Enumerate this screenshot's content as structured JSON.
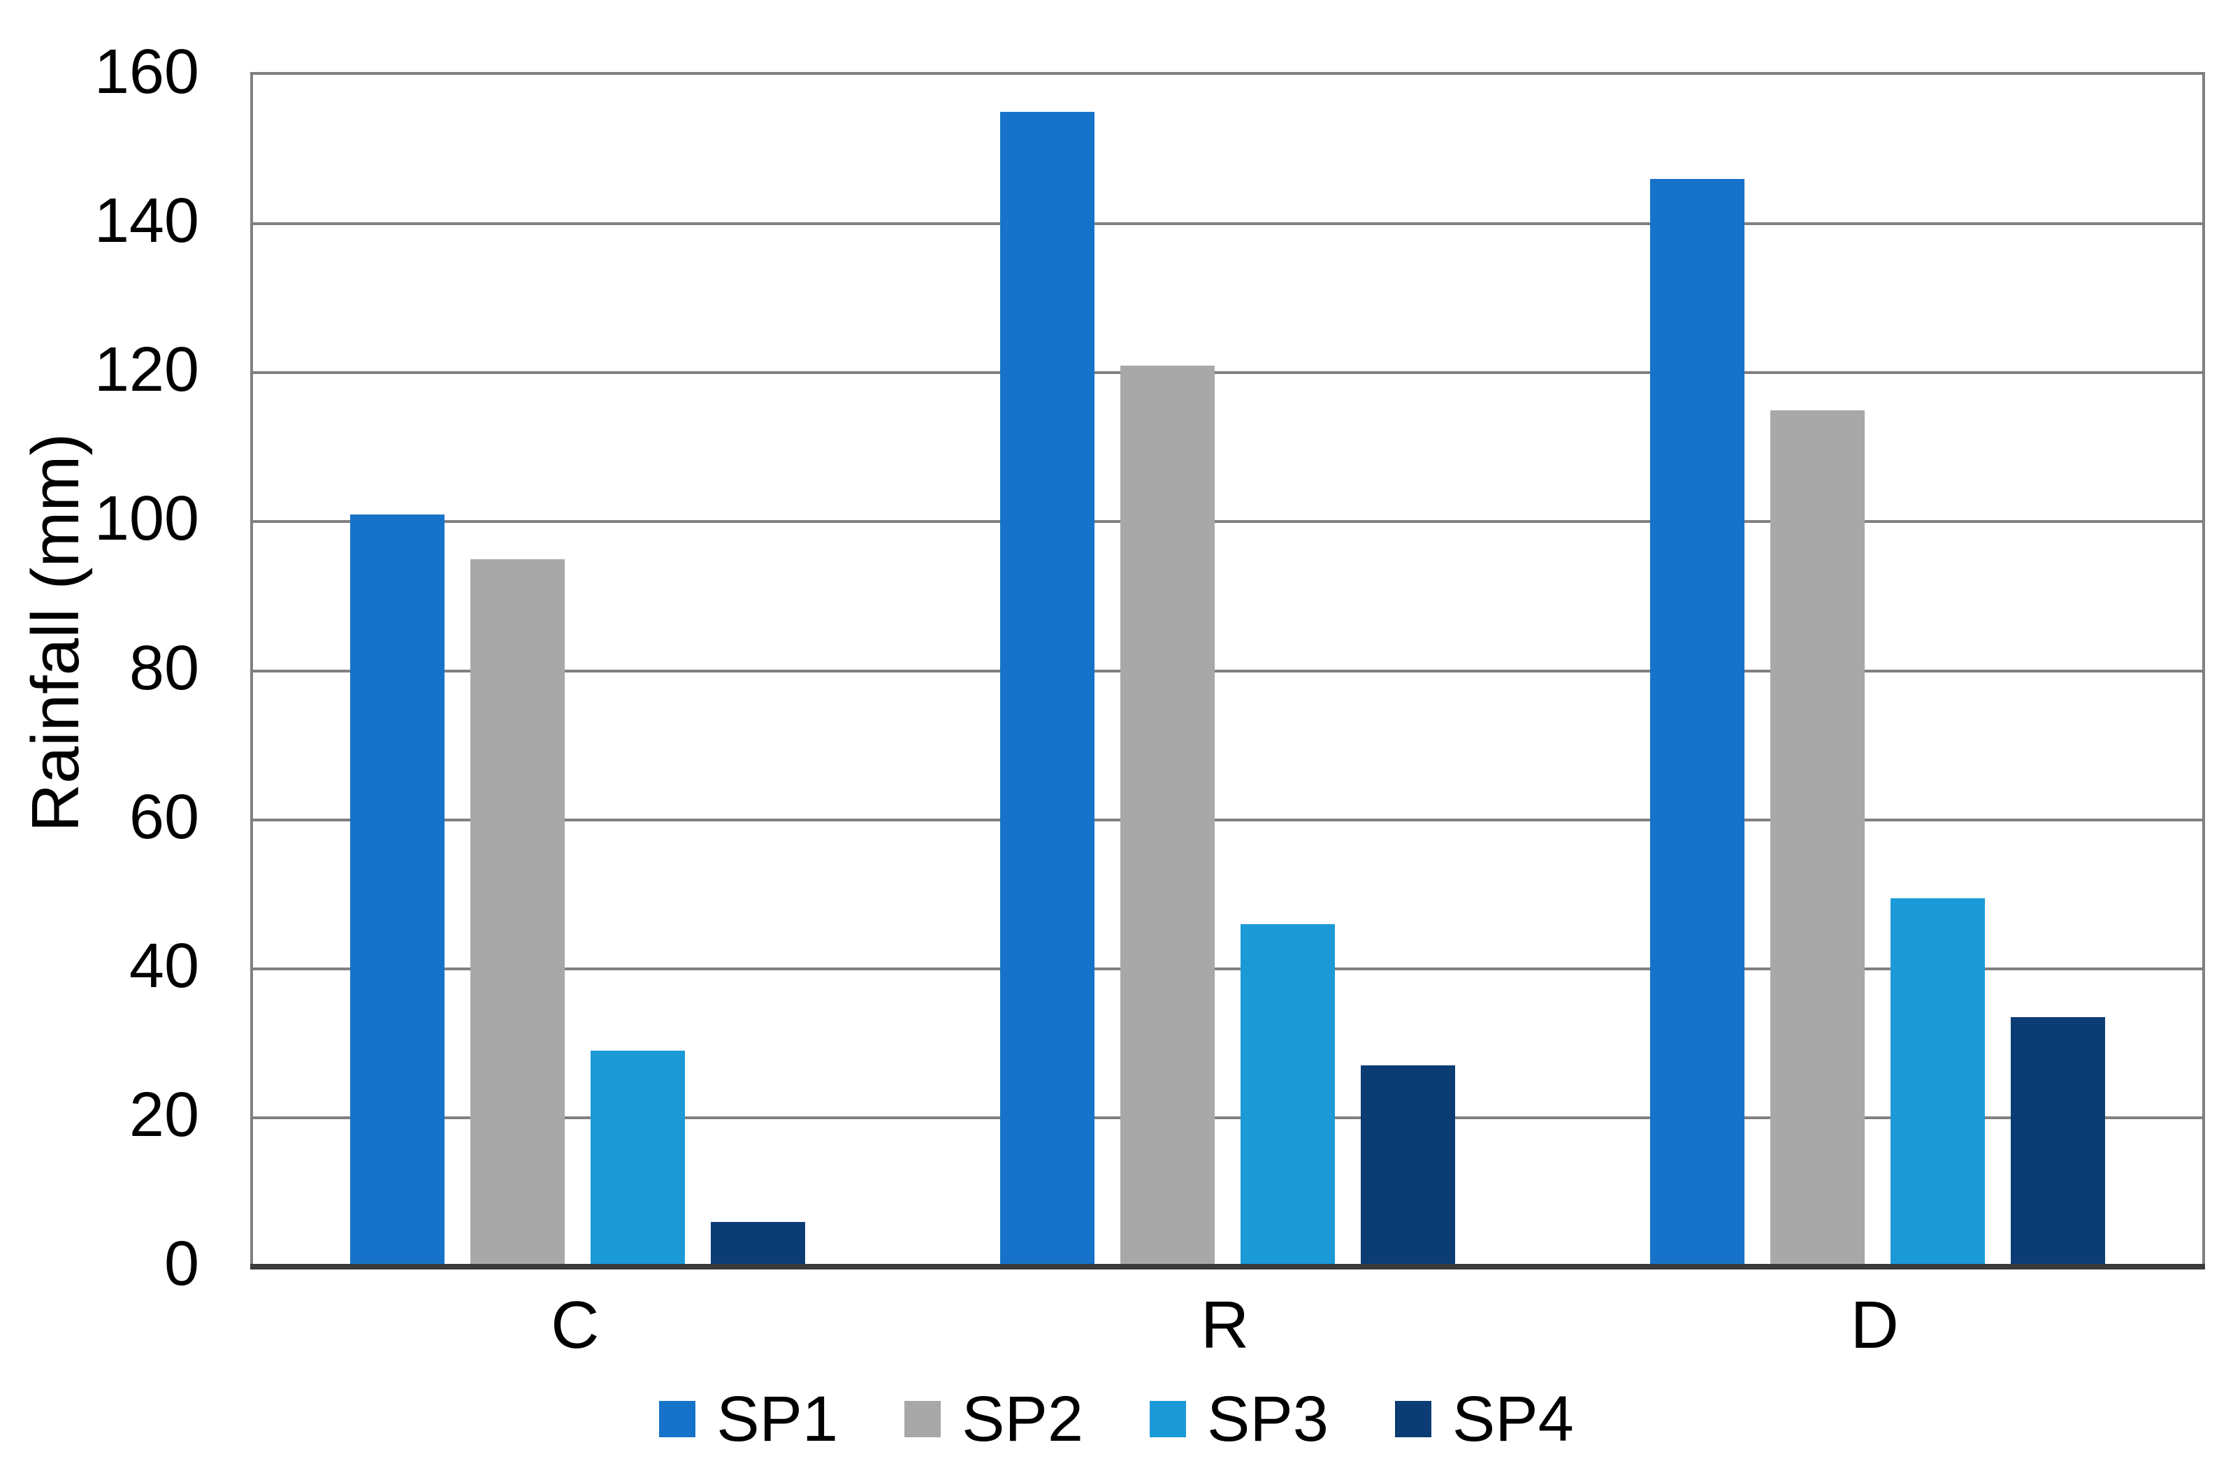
{
  "chart_data": {
    "type": "bar",
    "categories": [
      "C",
      "R",
      "D"
    ],
    "series": [
      {
        "name": "SP1",
        "color": "#1673C9",
        "values": [
          101,
          155,
          146
        ]
      },
      {
        "name": "SP2",
        "color": "#A8A8A8",
        "values": [
          95,
          121,
          115
        ]
      },
      {
        "name": "SP3",
        "color": "#1B9AD7",
        "values": [
          29,
          46,
          49.5
        ]
      },
      {
        "name": "SP4",
        "color": "#0C3C74",
        "values": [
          6,
          27,
          33.5
        ]
      }
    ],
    "title": "",
    "xlabel": "",
    "ylabel": "Rainfall (mm)",
    "ylim": [
      0,
      160
    ],
    "ytick_step": 20,
    "y_ticks": [
      0,
      20,
      40,
      60,
      80,
      100,
      120,
      140,
      160
    ],
    "grid": true,
    "legend_position": "bottom",
    "axis_color": "#3b3b3b",
    "gridline_color": "#808080",
    "text_color": "#000000"
  }
}
